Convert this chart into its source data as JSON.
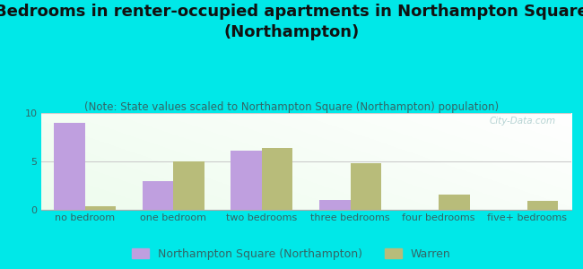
{
  "title": "Bedrooms in renter-occupied apartments in Northampton Square\n(Northampton)",
  "subtitle": "(Note: State values scaled to Northampton Square (Northampton) population)",
  "categories": [
    "no bedroom",
    "one bedroom",
    "two bedrooms",
    "three bedrooms",
    "four bedrooms",
    "five+ bedrooms"
  ],
  "northampton_values": [
    9.0,
    3.0,
    6.1,
    1.0,
    0.0,
    0.0
  ],
  "warren_values": [
    0.4,
    5.0,
    6.4,
    4.8,
    1.6,
    0.9
  ],
  "northampton_color": "#bf9fdf",
  "warren_color": "#b8bc7a",
  "background_color": "#00e8e8",
  "ylim": [
    0,
    10
  ],
  "yticks": [
    0,
    5,
    10
  ],
  "bar_width": 0.35,
  "title_fontsize": 13,
  "subtitle_fontsize": 8.5,
  "tick_fontsize": 8,
  "legend_fontsize": 9,
  "watermark": "City-Data.com",
  "northampton_label": "Northampton Square (Northampton)",
  "warren_label": "Warren",
  "title_color": "#111111",
  "subtitle_color": "#336666",
  "tick_color": "#336666",
  "legend_color": "#336666"
}
